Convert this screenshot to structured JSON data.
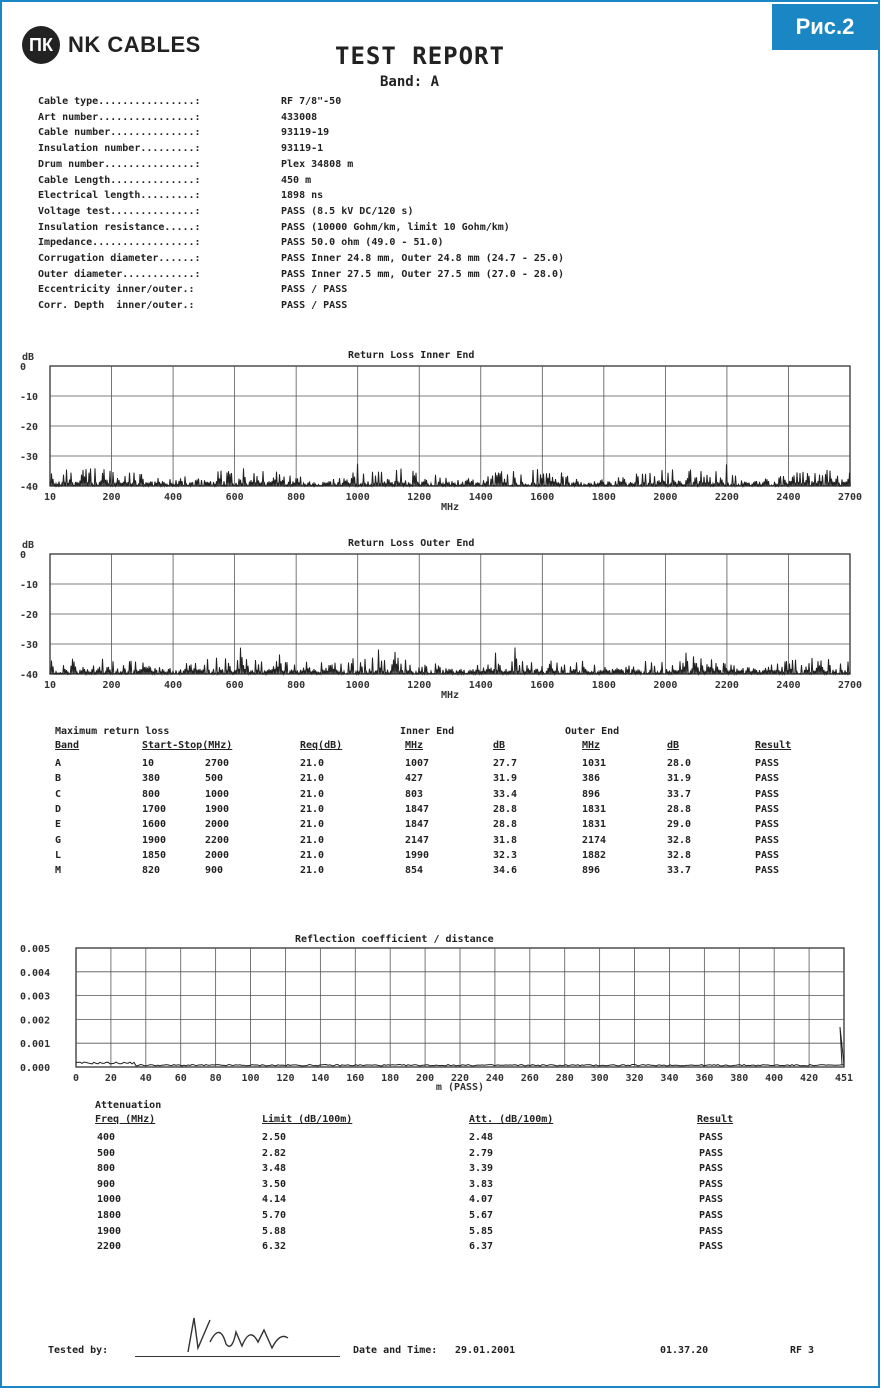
{
  "figure_tag": "Рис.2",
  "logo": {
    "mark": "ПК",
    "text": "NK CABLES"
  },
  "title": "TEST REPORT",
  "band_line": "Band: A",
  "specs": [
    {
      "key": "Cable type................:",
      "value": "RF 7/8\"-50"
    },
    {
      "key": "Art number................:",
      "value": "433008"
    },
    {
      "key": "Cable number..............:",
      "value": "93119-19"
    },
    {
      "key": "Insulation number.........:",
      "value": "93119-1"
    },
    {
      "key": "Drum number...............:",
      "value": "Plex 34808 m"
    },
    {
      "key": "Cable Length..............:",
      "value": "450 m"
    },
    {
      "key": "Electrical length.........:",
      "value": "1898 ns"
    },
    {
      "key": "Voltage test..............:",
      "value": "PASS (8.5 kV DC/120 s)"
    },
    {
      "key": "Insulation resistance.....:",
      "value": "PASS (10000 Gohm/km, limit 10 Gohm/km)"
    },
    {
      "key": "Impedance.................:",
      "value": "PASS 50.0 ohm (49.0 - 51.0)"
    },
    {
      "key": "Corrugation diameter......:",
      "value": "PASS Inner 24.8 mm, Outer 24.8 mm (24.7 - 25.0)"
    },
    {
      "key": "Outer diameter............:",
      "value": "PASS Inner 27.5 mm, Outer 27.5 mm (27.0 - 28.0)"
    },
    {
      "key": "Eccentricity inner/outer.:",
      "value": "PASS / PASS"
    },
    {
      "key": "Corr. Depth  inner/outer.:",
      "value": "PASS / PASS"
    }
  ],
  "charts": {
    "inner": {
      "title": "Return Loss Inner End",
      "ylabel": "dB",
      "xlabel": "MHz",
      "yticks": [
        "0",
        "-10",
        "-20",
        "-30",
        "-40"
      ],
      "xticks": [
        "10",
        "200",
        "400",
        "600",
        "800",
        "1000",
        "1200",
        "1400",
        "1600",
        "1800",
        "2000",
        "2200",
        "2400",
        "2700"
      ]
    },
    "outer": {
      "title": "Return Loss Outer End",
      "ylabel": "dB",
      "xlabel": "MHz",
      "yticks": [
        "0",
        "-10",
        "-20",
        "-30",
        "-40"
      ],
      "xticks": [
        "10",
        "200",
        "400",
        "600",
        "800",
        "1000",
        "1200",
        "1400",
        "1600",
        "1800",
        "2000",
        "2200",
        "2400",
        "2700"
      ]
    },
    "refl": {
      "title": "Reflection coefficient / distance",
      "xlabel": "m (PASS)",
      "yticks": [
        "0.005",
        "0.004",
        "0.003",
        "0.002",
        "0.001",
        "0.000"
      ],
      "xticks": [
        "0",
        "20",
        "40",
        "60",
        "80",
        "100",
        "120",
        "140",
        "160",
        "180",
        "200",
        "220",
        "240",
        "260",
        "280",
        "300",
        "320",
        "340",
        "360",
        "380",
        "400",
        "420",
        "451"
      ]
    }
  },
  "return_loss_table": {
    "title": "Maximum return loss",
    "inner_group": "Inner End",
    "outer_group": "Outer End",
    "headers": [
      "Band",
      "Start-Stop(MHz)",
      "",
      "Req(dB)",
      "MHz",
      "dB",
      "MHz",
      "dB",
      "Result"
    ],
    "rows": [
      [
        "A",
        "10",
        "2700",
        "21.0",
        "1007",
        "27.7",
        "1031",
        "28.0",
        "PASS"
      ],
      [
        "B",
        "380",
        "500",
        "21.0",
        "427",
        "31.9",
        "386",
        "31.9",
        "PASS"
      ],
      [
        "C",
        "800",
        "1000",
        "21.0",
        "803",
        "33.4",
        "896",
        "33.7",
        "PASS"
      ],
      [
        "D",
        "1700",
        "1900",
        "21.0",
        "1847",
        "28.8",
        "1831",
        "28.8",
        "PASS"
      ],
      [
        "E",
        "1600",
        "2000",
        "21.0",
        "1847",
        "28.8",
        "1831",
        "29.0",
        "PASS"
      ],
      [
        "G",
        "1900",
        "2200",
        "21.0",
        "2147",
        "31.8",
        "2174",
        "32.8",
        "PASS"
      ],
      [
        "L",
        "1850",
        "2000",
        "21.0",
        "1990",
        "32.3",
        "1882",
        "32.8",
        "PASS"
      ],
      [
        "M",
        "820",
        "900",
        "21.0",
        "854",
        "34.6",
        "896",
        "33.7",
        "PASS"
      ]
    ]
  },
  "attenuation_table": {
    "title": "Attenuation",
    "headers": [
      "Freq (MHz)",
      "Limit (dB/100m)",
      "Att. (dB/100m)",
      "Result"
    ],
    "rows": [
      [
        "400",
        "2.50",
        "2.48",
        "PASS"
      ],
      [
        "500",
        "2.82",
        "2.79",
        "PASS"
      ],
      [
        "800",
        "3.48",
        "3.39",
        "PASS"
      ],
      [
        "900",
        "3.50",
        "3.83",
        "PASS"
      ],
      [
        "1000",
        "4.14",
        "4.07",
        "PASS"
      ],
      [
        "1800",
        "5.70",
        "5.67",
        "PASS"
      ],
      [
        "1900",
        "5.88",
        "5.85",
        "PASS"
      ],
      [
        "2200",
        "6.32",
        "6.37",
        "PASS"
      ]
    ]
  },
  "footer": {
    "tested_by_label": "Tested by:",
    "date_label": "Date and Time:",
    "date_value": "29.01.2001",
    "time_value": "01.37.20",
    "page_ref": "RF 3"
  }
}
